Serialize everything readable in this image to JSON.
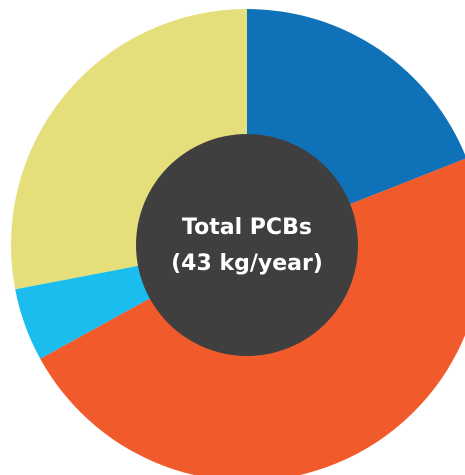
{
  "chart_data": {
    "type": "donut",
    "center_label": [
      "Total PCBs",
      "(43 kg/year)"
    ],
    "values": [
      19,
      48,
      5,
      28
    ],
    "colors": [
      "#0f72b8",
      "#f15a2b",
      "#1bbcee",
      "#e5df7b"
    ],
    "center_color": "#3f3f3f"
  }
}
